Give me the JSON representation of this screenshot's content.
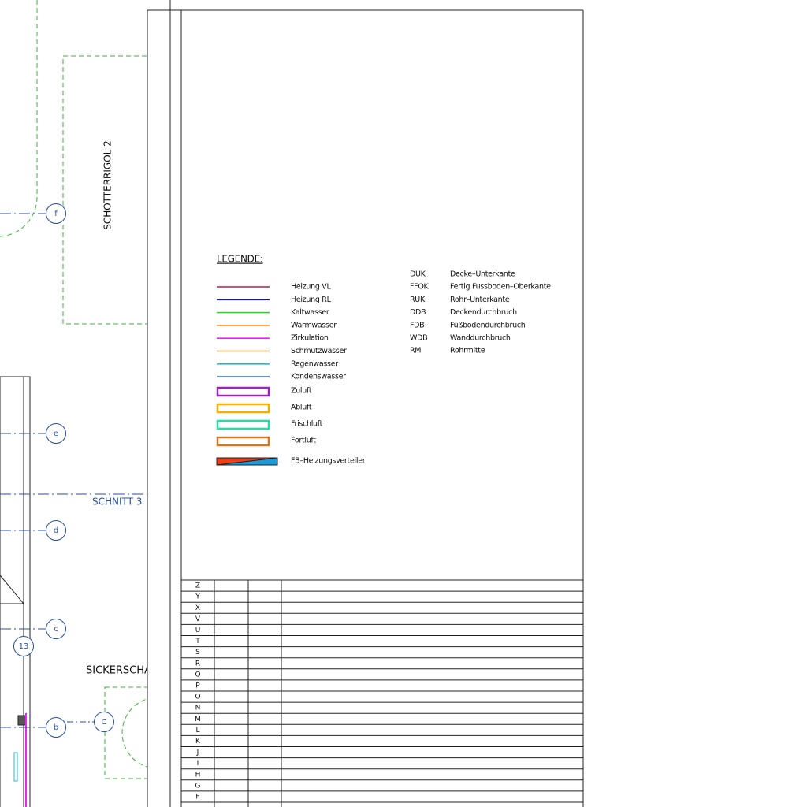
{
  "drawing": {
    "grid_labels": [
      "f",
      "e",
      "d",
      "c",
      "b"
    ],
    "detail_labels": [
      "13",
      "C"
    ],
    "rigol_label": "SCHOTTERRIGOL 2",
    "section_label": "SCHNITT 3",
    "shaft_label": "SICKERSCHA"
  },
  "legend": {
    "title": "LEGENDE:",
    "lines": [
      {
        "label": "Heizung VL",
        "color": "#d0104a"
      },
      {
        "label": "Heizung RL",
        "color": "#1a1a8c"
      },
      {
        "label": "Kaltwasser",
        "color": "#22dd22"
      },
      {
        "label": "Warmwasser",
        "color": "#ff8c1a"
      },
      {
        "label": "Zirkulation",
        "color": "#ee22ee"
      },
      {
        "label": "Schmutzwasser",
        "color": "#c8963c"
      },
      {
        "label": "Regenwasser",
        "color": "#22b8d8"
      },
      {
        "label": "Kondenswasser",
        "color": "#2a78c8"
      }
    ],
    "ducts": [
      {
        "label": "Zuluft",
        "color": "#a020c8"
      },
      {
        "label": "Abluft",
        "color": "#f0b000"
      },
      {
        "label": "Frischluft",
        "color": "#20e0a0"
      },
      {
        "label": "Fortluft",
        "color": "#d07820"
      }
    ],
    "distributor": "FB–Heizungsverteiler"
  },
  "abbreviations": [
    {
      "code": "DUK",
      "meaning": "Decke–Unterkante"
    },
    {
      "code": "FFOK",
      "meaning": "Fertig Fussboden–Oberkante"
    },
    {
      "code": "RUK",
      "meaning": "Rohr–Unterkante"
    },
    {
      "code": "DDB",
      "meaning": "Deckendurchbruch"
    },
    {
      "code": "FDB",
      "meaning": "Fußbodendurchbruch"
    },
    {
      "code": "WDB",
      "meaning": "Wanddurchbruch"
    },
    {
      "code": "RM",
      "meaning": "Rohrmitte"
    }
  ],
  "revision_table": {
    "rows": [
      "Z",
      "Y",
      "X",
      "V",
      "U",
      "T",
      "S",
      "R",
      "Q",
      "P",
      "O",
      "N",
      "M",
      "L",
      "K",
      "J",
      "I",
      "H",
      "G",
      "F"
    ]
  }
}
